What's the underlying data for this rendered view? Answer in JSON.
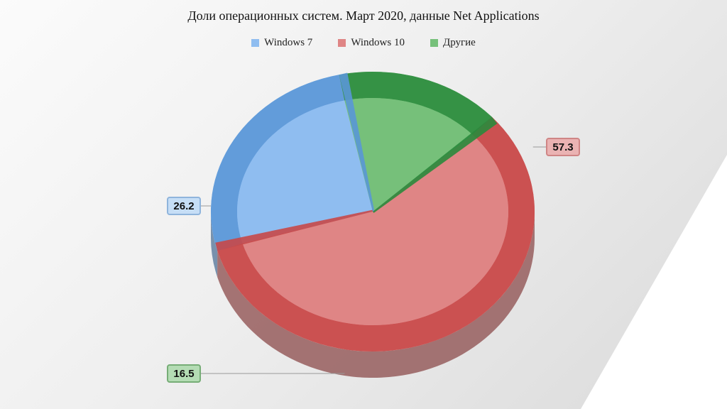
{
  "chart_data": {
    "type": "pie",
    "title": "Доли операционных систем. Март 2020, данные Net Applications",
    "legend_position": "top",
    "three_d": true,
    "slices": [
      {
        "name": "Windows 7",
        "value": 26.2,
        "label": "26.2",
        "color": "#8fbdf0",
        "side_color": "#5a97d6",
        "label_bg": "#c6def6",
        "label_border": "#8fb4dc"
      },
      {
        "name": "Windows 10",
        "value": 57.3,
        "label": "57.3",
        "color": "#df8585",
        "side_color": "#c84848",
        "label_bg": "#eab3b3",
        "label_border": "#cf8585"
      },
      {
        "name": "Другие",
        "value": 16.5,
        "label": "16.5",
        "color": "#76c07a",
        "side_color": "#2a8a3c",
        "label_bg": "#b4dcb4",
        "label_border": "#76ad76"
      }
    ]
  }
}
